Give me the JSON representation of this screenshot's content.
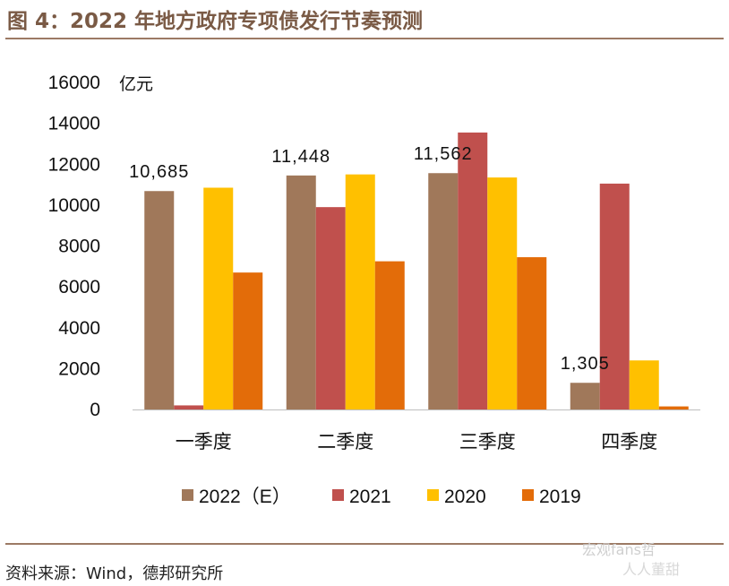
{
  "title": "图 4：2022 年地方政府专项债发行节奏预测",
  "source": "资料来源：Wind，德邦研究所",
  "watermark": "宏观fans哲",
  "watermark2": "人人董甜",
  "chart_data": {
    "type": "bar",
    "title": "图 4：2022 年地方政府专项债发行节奏预测",
    "ylabel": "亿元",
    "xlabel": "",
    "ylim": [
      0,
      16000
    ],
    "yticks": [
      0,
      2000,
      4000,
      6000,
      8000,
      10000,
      12000,
      14000,
      16000
    ],
    "grid": false,
    "legend_position": "bottom",
    "categories": [
      "一季度",
      "二季度",
      "三季度",
      "四季度"
    ],
    "series": [
      {
        "name": "2022（E）",
        "color": "#a0785a",
        "values": [
          10685,
          11448,
          11562,
          1305
        ]
      },
      {
        "name": "2021",
        "color": "#c0504d",
        "values": [
          200,
          9900,
          13550,
          11050
        ]
      },
      {
        "name": "2020",
        "color": "#ffc000",
        "values": [
          10850,
          11500,
          11350,
          2400
        ]
      },
      {
        "name": "2019",
        "color": "#e36c09",
        "values": [
          6700,
          7250,
          7450,
          150
        ]
      }
    ],
    "data_labels": [
      {
        "category": "一季度",
        "series": "2022（E）",
        "text": "10,685"
      },
      {
        "category": "二季度",
        "series": "2022（E）",
        "text": "11,448"
      },
      {
        "category": "三季度",
        "series": "2022（E）",
        "text": "11,562"
      },
      {
        "category": "四季度",
        "series": "2022（E）",
        "text": "1,305"
      }
    ]
  }
}
